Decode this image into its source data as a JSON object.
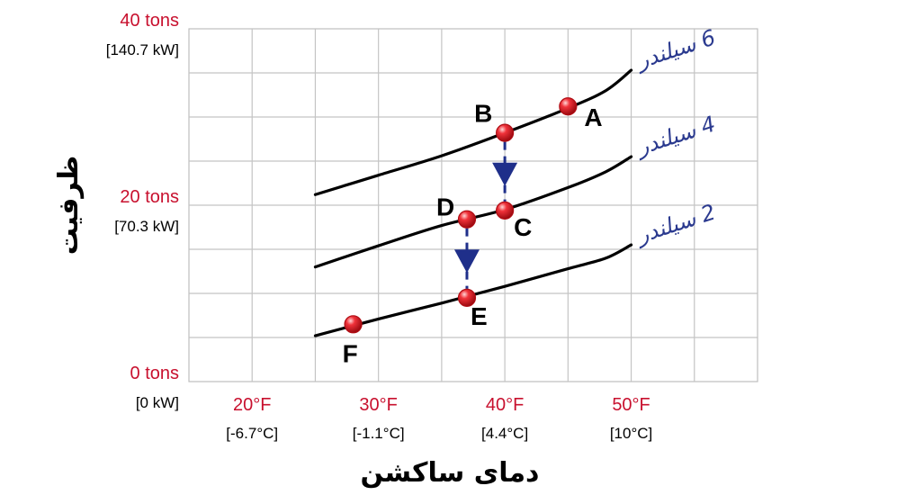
{
  "chart_data": {
    "type": "line",
    "title": "",
    "xlabel": "دمای ساکشن",
    "ylabel": "ظرفیت",
    "xlim": [
      15,
      60
    ],
    "ylim": [
      0,
      40
    ],
    "grid": true,
    "x_ticks": [
      {
        "value": 20,
        "label": "20°F",
        "sub": "[-6.7°C]"
      },
      {
        "value": 30,
        "label": "30°F",
        "sub": "[-1.1°C]"
      },
      {
        "value": 40,
        "label": "40°F",
        "sub": "[4.4°C]"
      },
      {
        "value": 50,
        "label": "50°F",
        "sub": "[10°C]"
      }
    ],
    "y_ticks": [
      {
        "value": 0,
        "label": "0 tons",
        "sub": "[0 kW]"
      },
      {
        "value": 20,
        "label": "20 tons",
        "sub": "[70.3 kW]"
      },
      {
        "value": 40,
        "label": "40 tons",
        "sub": "[140.7 kW]"
      }
    ],
    "series": [
      {
        "name": "6 سیلندر",
        "color": "#000000",
        "x": [
          25,
          30,
          35,
          40,
          45,
          48,
          50
        ],
        "y": [
          21.2,
          23.4,
          25.6,
          28.2,
          31.0,
          33.0,
          35.3
        ]
      },
      {
        "name": "4 سیلندر",
        "color": "#000000",
        "x": [
          25,
          30,
          35,
          40,
          45,
          48,
          50
        ],
        "y": [
          13.0,
          15.4,
          17.7,
          19.5,
          22.0,
          23.8,
          25.5
        ]
      },
      {
        "name": "2 سیلندر",
        "color": "#000000",
        "x": [
          25,
          30,
          35,
          40,
          45,
          48,
          50
        ],
        "y": [
          5.2,
          7.1,
          8.9,
          10.8,
          12.8,
          14.0,
          15.5
        ]
      }
    ],
    "points": [
      {
        "label": "A",
        "x": 45,
        "y": 31.2
      },
      {
        "label": "B",
        "x": 40,
        "y": 28.2
      },
      {
        "label": "C",
        "x": 40,
        "y": 19.4
      },
      {
        "label": "D",
        "x": 37,
        "y": 18.4
      },
      {
        "label": "E",
        "x": 37,
        "y": 9.5
      },
      {
        "label": "F",
        "x": 28,
        "y": 6.5
      }
    ],
    "arrows": [
      {
        "from": "B",
        "to": "C"
      },
      {
        "from": "D",
        "to": "E"
      }
    ],
    "point_color": "#e8141c",
    "arrow_color": "#1f2f8a"
  }
}
